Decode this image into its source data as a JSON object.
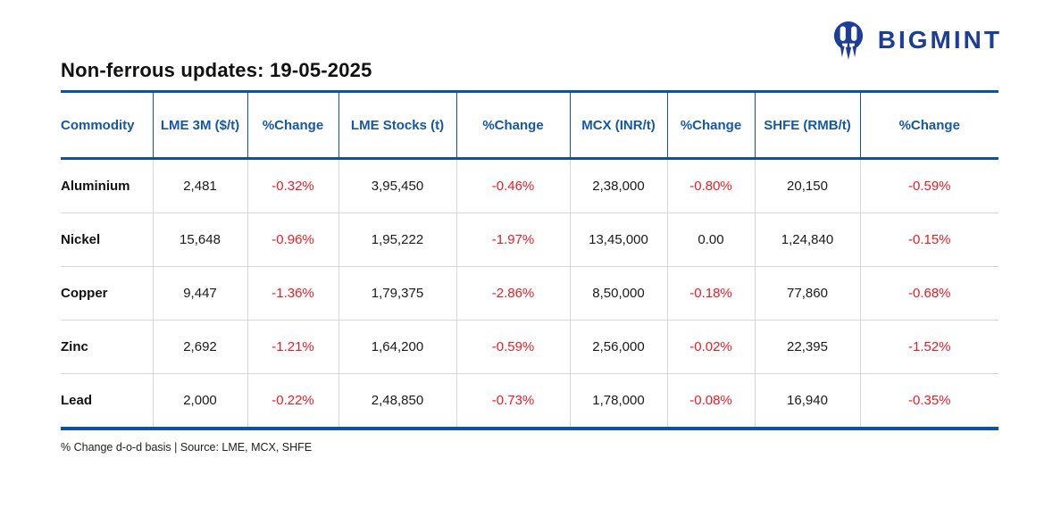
{
  "logo": {
    "text": "BIGMINT"
  },
  "title": "Non-ferrous updates: 19-05-2025",
  "footnote": "% Change d-o-d basis | Source: LME, MCX, SHFE",
  "colors": {
    "brand_navy": "#1C3E97",
    "table_blue": "#0E51A0",
    "header_text_blue": "#1558A8",
    "negative_red": "#EC1B23",
    "grid_gray": "#D8D8D8"
  },
  "chart_data": {
    "type": "table",
    "title": "Non-ferrous updates: 19-05-2025",
    "columns": [
      "Commodity",
      "LME 3M ($/t)",
      "%Change",
      "LME Stocks (t)",
      "%Change",
      "MCX (INR/t)",
      "%Change",
      "SHFE (RMB/t)",
      "%Change"
    ],
    "rows": [
      [
        "Aluminium",
        "2,481",
        "-0.32%",
        "3,95,450",
        "-0.46%",
        "2,38,000",
        "-0.80%",
        "20,150",
        "-0.59%"
      ],
      [
        "Nickel",
        "15,648",
        "-0.96%",
        "1,95,222",
        "-1.97%",
        "13,45,000",
        "0.00",
        "1,24,840",
        "-0.15%"
      ],
      [
        "Copper",
        "9,447",
        "-1.36%",
        "1,79,375",
        "-2.86%",
        "8,50,000",
        "-0.18%",
        "77,860",
        "-0.68%"
      ],
      [
        "Zinc",
        "2,692",
        "-1.21%",
        "1,64,200",
        "-0.59%",
        "2,56,000",
        "-0.02%",
        "22,395",
        "-1.52%"
      ],
      [
        "Lead",
        "2,000",
        "-0.22%",
        "2,48,850",
        "-0.73%",
        "1,78,000",
        "-0.08%",
        "16,940",
        "-0.35%"
      ]
    ],
    "source_note": "% Change d-o-d basis | Source: LME, MCX, SHFE"
  }
}
